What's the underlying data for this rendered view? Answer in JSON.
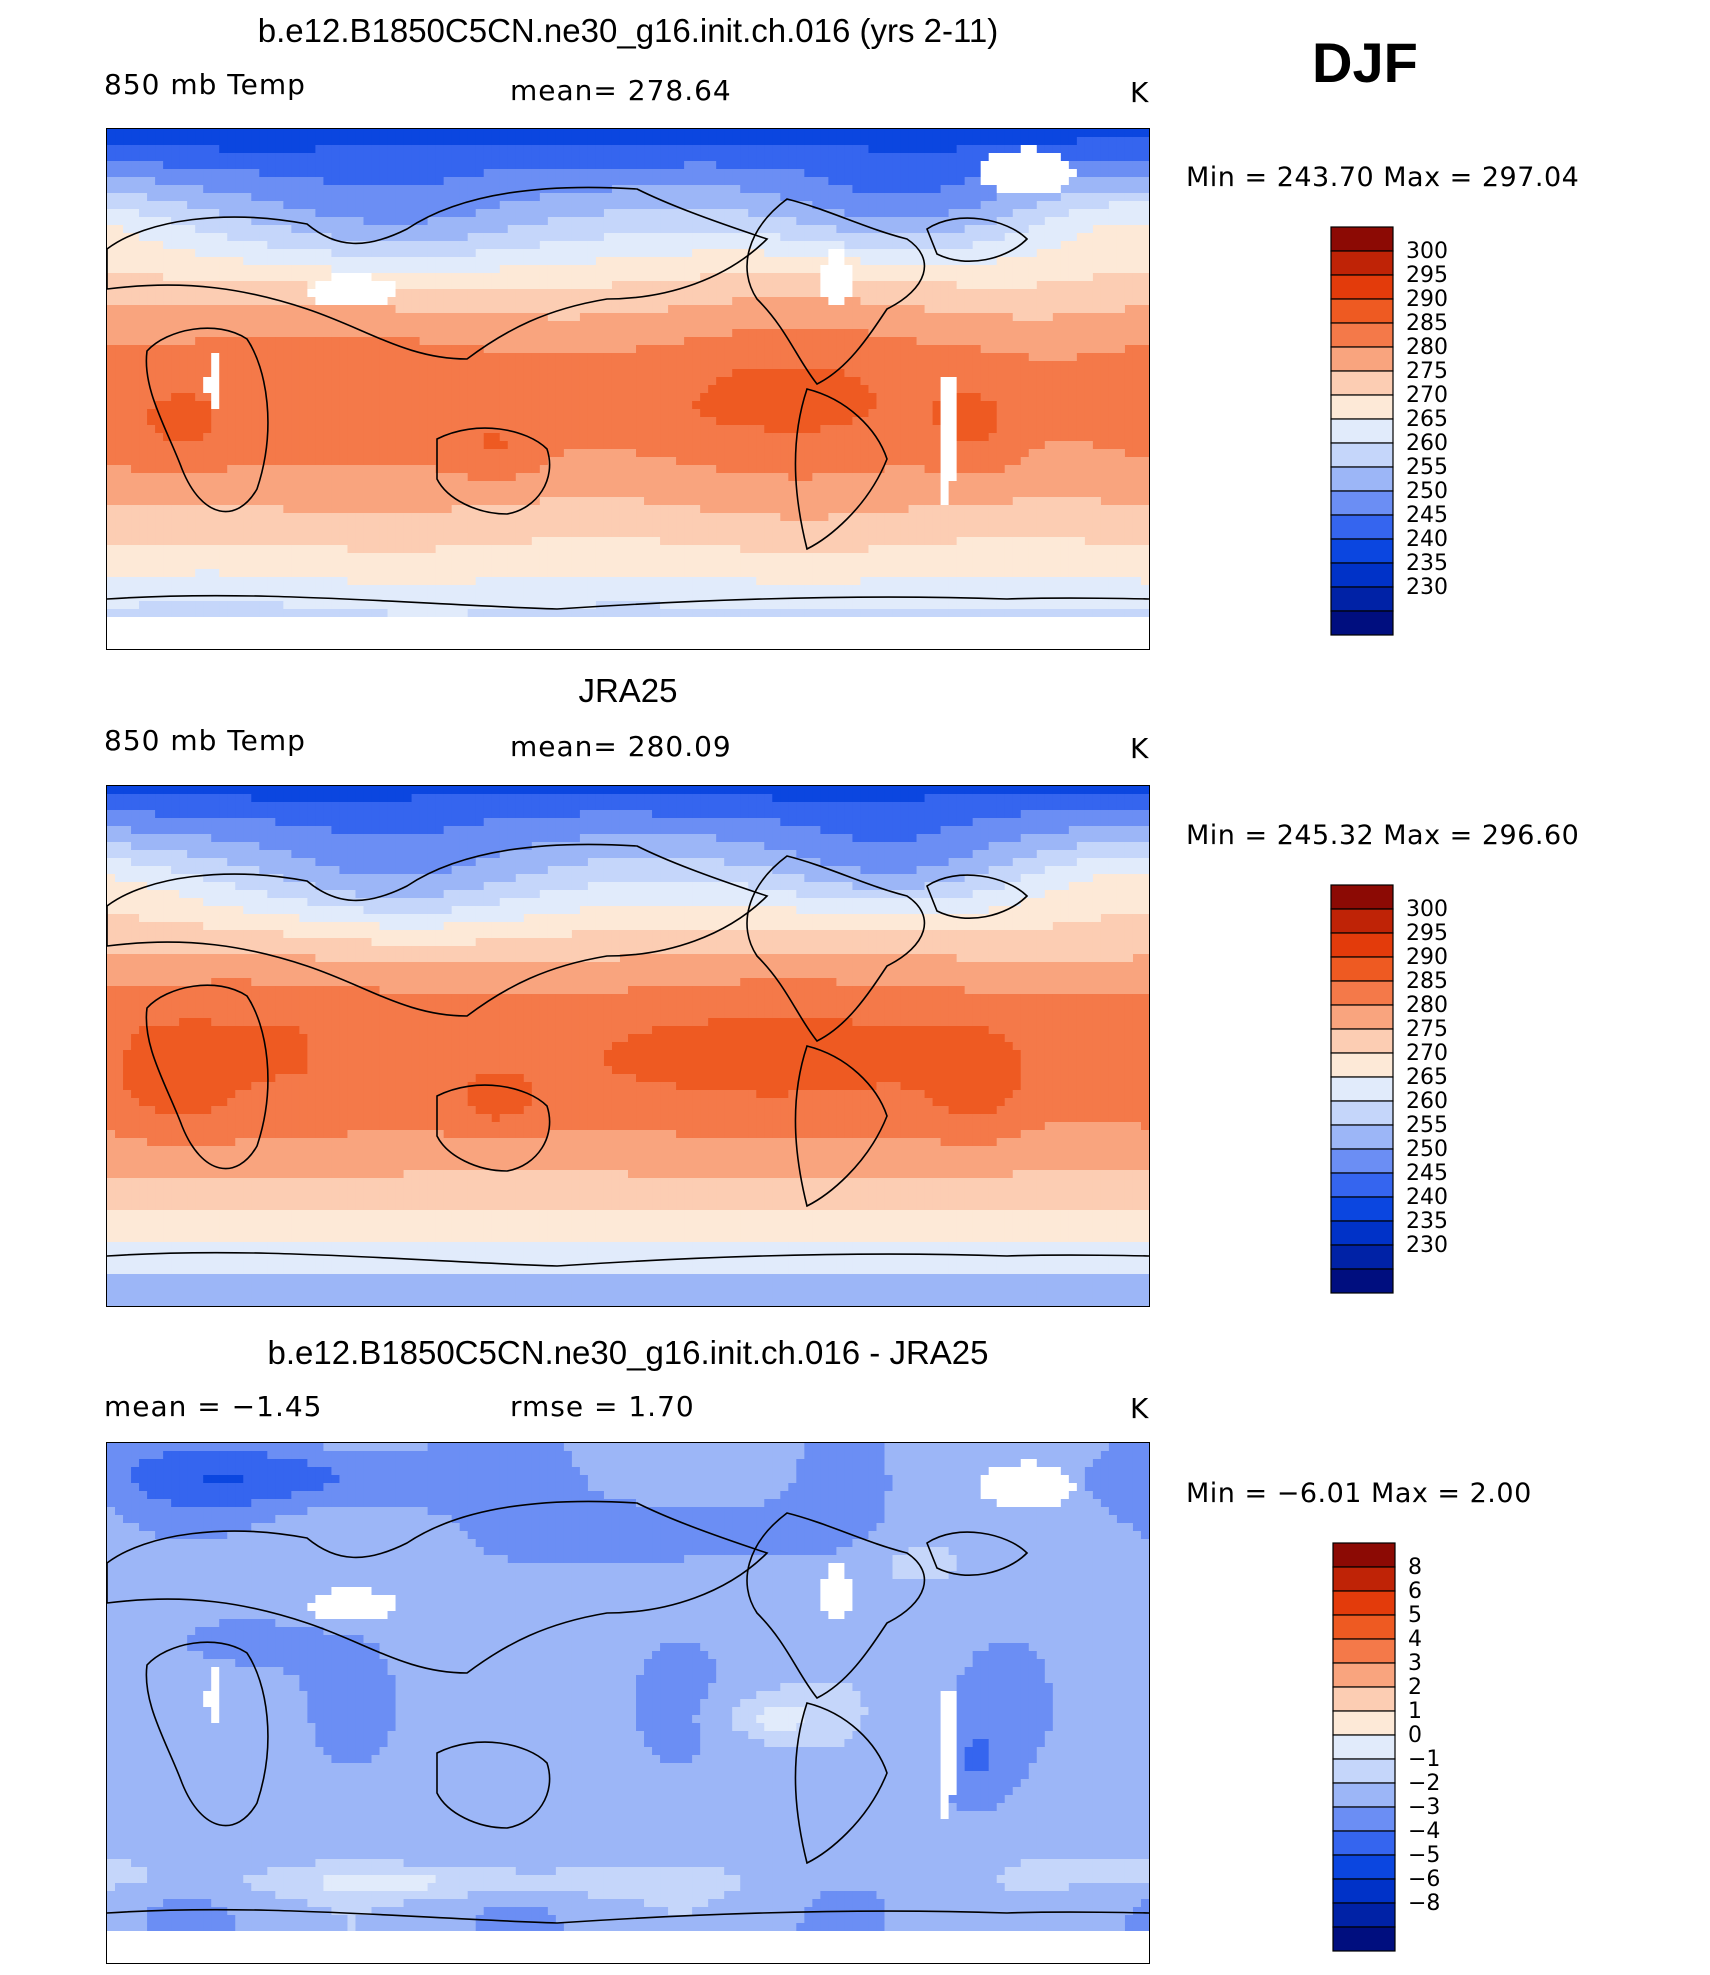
{
  "season": "DJF",
  "colors": {
    "temp_scale": [
      "#000e7f",
      "#0022a6",
      "#0032c8",
      "#0b46e0",
      "#3565ef",
      "#6b8ef4",
      "#9cb6f7",
      "#c5d6fa",
      "#e1ebfb",
      "#fde9d7",
      "#fccdb3",
      "#f9a47e",
      "#f47949",
      "#ee5a22",
      "#e33b0b",
      "#bf2306",
      "#8c0a04"
    ],
    "diff_scale": [
      "#000e7f",
      "#0022a6",
      "#0032c8",
      "#0b46e0",
      "#3565ef",
      "#6b8ef4",
      "#9cb6f7",
      "#c5d6fa",
      "#e1ebfb",
      "#fde9d7",
      "#fccdb3",
      "#f9a47e",
      "#f47949",
      "#ee5a22",
      "#e33b0b",
      "#bf2306",
      "#8c0a04"
    ],
    "missing": "#ffffff"
  },
  "chart_data": [
    {
      "type": "heatmap",
      "title": "b.e12.B1850C5CN.ne30_g16.init.ch.016 (yrs 2-11)",
      "left_label": "850 mb Temp",
      "center_label": "mean=  278.64",
      "units": "K",
      "min_max": "Min  =  243.70  Max  =  297.04",
      "colorbar_levels": [
        "300",
        "295",
        "290",
        "285",
        "280",
        "275",
        "270",
        "265",
        "260",
        "255",
        "250",
        "245",
        "240",
        "235",
        "230"
      ]
    },
    {
      "type": "heatmap",
      "title": "JRA25",
      "left_label": "850 mb Temp",
      "center_label": "mean=  280.09",
      "units": "K",
      "min_max": "Min  =  245.32  Max  =  296.60",
      "colorbar_levels": [
        "300",
        "295",
        "290",
        "285",
        "280",
        "275",
        "270",
        "265",
        "260",
        "255",
        "250",
        "245",
        "240",
        "235",
        "230"
      ]
    },
    {
      "type": "heatmap",
      "title": "b.e12.B1850C5CN.ne30_g16.init.ch.016 - JRA25",
      "left_label": "mean  =    −1.45",
      "center_label": "rmse  =     1.70",
      "units": "K",
      "min_max": "Min  =    −6.01  Max  =     2.00",
      "colorbar_levels": [
        "8",
        "6",
        "5",
        "4",
        "3",
        "2",
        "1",
        "0",
        "−1",
        "−2",
        "−3",
        "−4",
        "−5",
        "−6",
        "−8"
      ]
    }
  ]
}
